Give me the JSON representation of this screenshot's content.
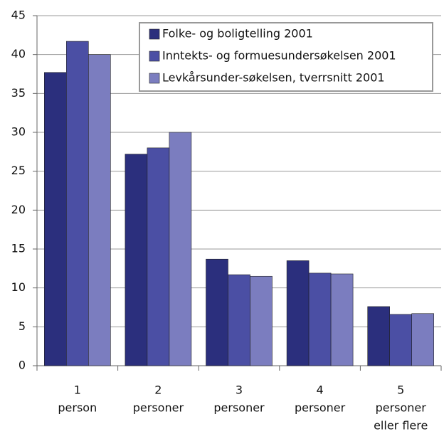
{
  "chart_data": {
    "type": "bar",
    "categories": [
      [
        "1",
        "person"
      ],
      [
        "2",
        "personer"
      ],
      [
        "3",
        "personer"
      ],
      [
        "4",
        "personer"
      ],
      [
        "5",
        "personer",
        "eller flere"
      ]
    ],
    "series": [
      {
        "name": "Folke- og boligtelling 2001",
        "color": "#2b2f7d",
        "values": [
          37.7,
          27.2,
          13.7,
          13.5,
          7.6
        ]
      },
      {
        "name": "Inntekts- og formuesundersøkelsen 2001",
        "color": "#4b4fa4",
        "values": [
          41.7,
          28.0,
          11.7,
          11.9,
          6.6
        ]
      },
      {
        "name": "Levkårsunder-søkelsen, tverrsnitt 2001",
        "color": "#7b7dbf",
        "values": [
          40.0,
          30.0,
          11.5,
          11.8,
          6.7
        ]
      }
    ],
    "ylim": [
      0,
      45
    ],
    "yticks": [
      0,
      5,
      10,
      15,
      20,
      25,
      30,
      35,
      40,
      45
    ],
    "grid": true,
    "legend": "top-right"
  }
}
